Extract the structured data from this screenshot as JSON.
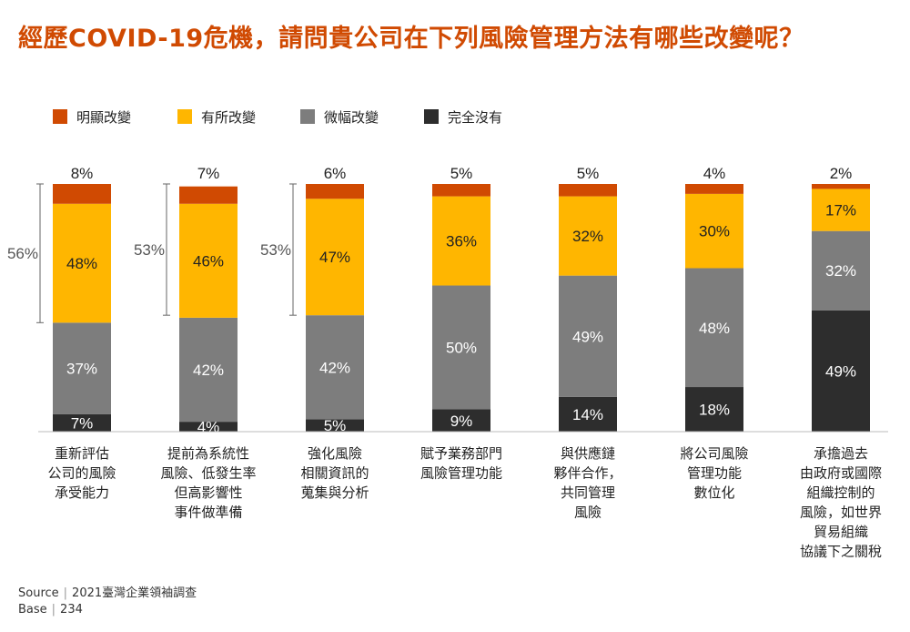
{
  "title": "經歷COVID-19危機，請問貴公司在下列風險管理方法有哪些改變呢？",
  "footer": {
    "source_label": "Source",
    "source_value": "2021臺灣企業領袖調查",
    "base_label": "Base",
    "base_value": "234"
  },
  "chart_data": {
    "type": "bar",
    "stacked": true,
    "unit": "%",
    "ylim": [
      0,
      100
    ],
    "legend_position": "top-left",
    "grid": false,
    "categories": [
      [
        "重新評估",
        "公司的風險",
        "承受能力"
      ],
      [
        "提前為系統性",
        "風險、低發生率",
        "但高影響性",
        "事件做準備"
      ],
      [
        "強化風險",
        "相關資訊的",
        "蒐集與分析"
      ],
      [
        "賦予業務部門",
        "風險管理功能"
      ],
      [
        "與供應鏈",
        "夥伴合作，",
        "共同管理",
        "風險"
      ],
      [
        "將公司風險",
        "管理功能",
        "數位化"
      ],
      [
        "承擔過去",
        "由政府或國際",
        "組織控制的",
        "風險，如世界",
        "貿易組織",
        "協議下之關稅"
      ]
    ],
    "series": [
      {
        "name": "明顯改變",
        "color": "#d04a02",
        "values": [
          8,
          7,
          6,
          5,
          5,
          4,
          2
        ]
      },
      {
        "name": "有所改變",
        "color": "#ffb600",
        "values": [
          48,
          46,
          47,
          36,
          32,
          30,
          17
        ]
      },
      {
        "name": "微幅改變",
        "color": "#7d7d7d",
        "values": [
          37,
          42,
          42,
          50,
          49,
          48,
          32
        ]
      },
      {
        "name": "完全沒有",
        "color": "#2d2d2d",
        "values": [
          7,
          4,
          5,
          9,
          14,
          18,
          49
        ]
      }
    ],
    "brackets": [
      {
        "category_index": 0,
        "label": "56%",
        "value": 56
      },
      {
        "category_index": 1,
        "label": "53%",
        "value": 53
      },
      {
        "category_index": 2,
        "label": "53%",
        "value": 53
      }
    ]
  }
}
